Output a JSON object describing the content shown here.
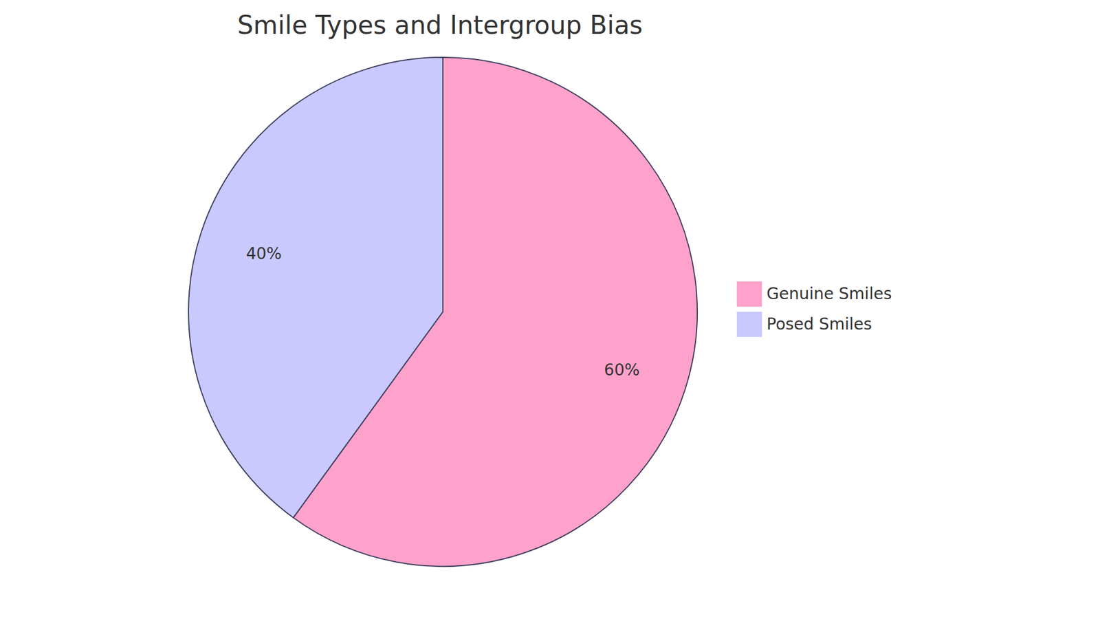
{
  "chart_data": {
    "type": "pie",
    "title": "Smile Types and Intergroup Bias",
    "categories": [
      "Genuine Smiles",
      "Posed Smiles"
    ],
    "values": [
      60,
      40
    ],
    "value_labels": [
      "60%",
      "40%"
    ],
    "colors": [
      "#ffa2cb",
      "#c9c9ff"
    ],
    "data_labels": true,
    "legend": "right"
  }
}
